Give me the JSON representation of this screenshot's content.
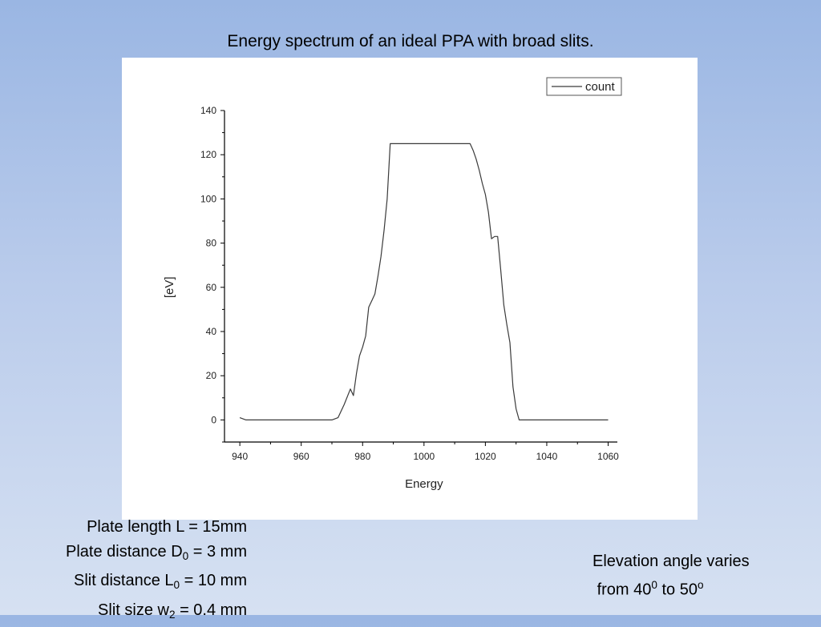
{
  "slide": {
    "title": "Energy spectrum of an ideal PPA with broad slits."
  },
  "parameters": [
    {
      "label": "Plate length L = 15mm",
      "base": "Plate length L = 15mm",
      "sub": "",
      "rest": ""
    },
    {
      "label": "Plate distance D0 = 3 mm",
      "base": "Plate distance D",
      "sub": "0",
      "rest": " = 3 mm"
    },
    {
      "label": "Slit distance L0 = 10 mm",
      "base": "Slit distance L",
      "sub": "0",
      "rest": " = 10 mm"
    },
    {
      "label": "Slit size w2 = 0.4 mm",
      "base": "Slit size w",
      "sub": "2",
      "rest": " = 0.4 mm"
    }
  ],
  "elevation_note": {
    "line1": "Elevation angle varies",
    "line2_base": "from 40",
    "line2_sup1": "0",
    "line2_mid": " to 50",
    "line2_sup2": "o"
  },
  "colors": {
    "line": "#3a3a3a",
    "axis": "#000000",
    "panel": "#ffffff"
  },
  "chart_data": {
    "type": "line",
    "title": "",
    "xlabel": "Energy",
    "ylabel": "[eV]",
    "xlim": [
      935,
      1063
    ],
    "ylim": [
      -10,
      140
    ],
    "xticks": [
      940,
      960,
      980,
      1000,
      1020,
      1040,
      1060
    ],
    "yticks": [
      0,
      20,
      40,
      60,
      80,
      100,
      120,
      140
    ],
    "grid": false,
    "legend": {
      "position": "top-right",
      "entries": [
        "count"
      ]
    },
    "series": [
      {
        "name": "count",
        "x": [
          940,
          942,
          945,
          950,
          955,
          960,
          965,
          970,
          972,
          974,
          976,
          977,
          978,
          979,
          980,
          981,
          982,
          983,
          984,
          985,
          986,
          987,
          988,
          989,
          990,
          995,
          1000,
          1005,
          1010,
          1015,
          1016,
          1017,
          1018,
          1019,
          1020,
          1021,
          1022,
          1023,
          1024,
          1025,
          1026,
          1027,
          1028,
          1029,
          1030,
          1031,
          1032,
          1035,
          1040,
          1045,
          1050,
          1055,
          1060
        ],
        "y": [
          1,
          0,
          0,
          0,
          0,
          0,
          0,
          0,
          1,
          7,
          14,
          11,
          21,
          29,
          33,
          38,
          51,
          54,
          57,
          65,
          74,
          86,
          100,
          125,
          125,
          125,
          125,
          125,
          125,
          125,
          122,
          118,
          113,
          107,
          102,
          94,
          82,
          83,
          83,
          68,
          52,
          43,
          35,
          15,
          5,
          0,
          0,
          0,
          0,
          0,
          0,
          0,
          0
        ]
      }
    ]
  }
}
